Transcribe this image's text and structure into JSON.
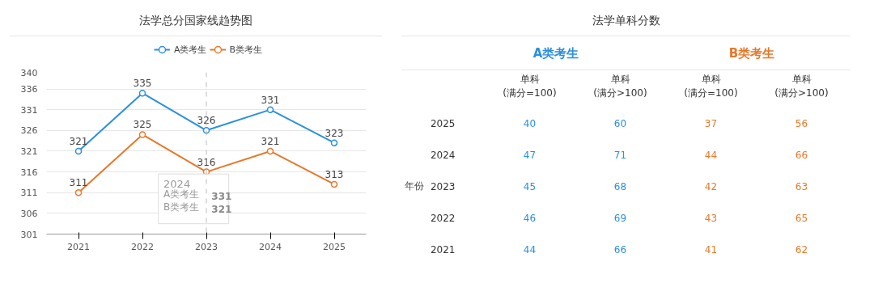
{
  "chart_data": [
    {
      "type": "line",
      "title": "法学总分国家线趋势图",
      "categories": [
        "2021",
        "2022",
        "2023",
        "2024",
        "2025"
      ],
      "series": [
        {
          "name": "A类考生",
          "color": "#2b8fe0",
          "values": [
            321,
            335,
            326,
            331,
            323
          ]
        },
        {
          "name": "B类考生",
          "color": "#e8782a",
          "values": [
            311,
            325,
            316,
            321,
            313
          ]
        }
      ],
      "ylim": [
        301,
        340
      ],
      "yticks": [
        301,
        306,
        311,
        316,
        321,
        326,
        331,
        336,
        340
      ],
      "grid": "y",
      "legend": "top",
      "marker": "circle",
      "data_labels": true,
      "ref_lines": [
        {
          "axis": "x",
          "value": "2023",
          "color": "#bbbbbb",
          "line_style": "dashed"
        }
      ],
      "annotations": [
        "2024",
        "A类考生",
        "331",
        "B类考生",
        "321"
      ]
    },
    {
      "type": "heatmap",
      "title": "法学单科分数",
      "ylabel": "年份",
      "categories": [
        "单科\n(满分=100)",
        "单科\n(满分>100)",
        "单科\n(满分=100)",
        "单科\n(满分>100)"
      ],
      "y_categories": [
        "2025",
        "2024",
        "2023",
        "2022",
        "2021"
      ],
      "cells": [
        [
          40,
          60,
          37,
          56
        ],
        [
          47,
          71,
          44,
          66
        ],
        [
          45,
          68,
          42,
          63
        ],
        [
          46,
          69,
          43,
          65
        ],
        [
          44,
          66,
          41,
          62
        ]
      ],
      "colors": [
        "#2b8fe0",
        "#2b8fe0",
        "#e8782a",
        "#e8782a"
      ],
      "data_labels": true,
      "annotations": [
        "A类考生",
        "B类考生"
      ]
    }
  ]
}
